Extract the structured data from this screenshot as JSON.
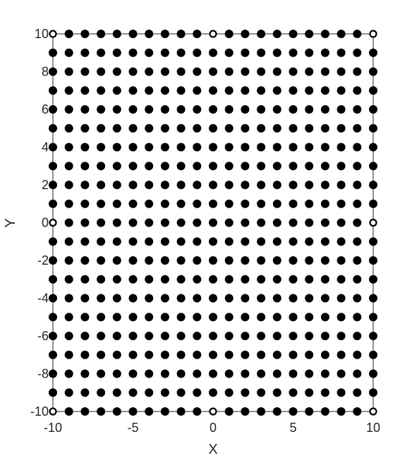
{
  "chart_data": {
    "type": "scatter",
    "title": "",
    "xlabel": "X",
    "ylabel": "Y",
    "xlim": [
      -10,
      10
    ],
    "ylim": [
      -10,
      10
    ],
    "xticks": [
      -10,
      -5,
      0,
      5,
      10
    ],
    "yticks": [
      -10,
      -8,
      -6,
      -4,
      -2,
      0,
      2,
      4,
      6,
      8,
      10
    ],
    "xtick_labels": [
      "-10",
      "-5",
      "0",
      "5",
      "10"
    ],
    "ytick_labels": [
      "-10",
      "-8",
      "-6",
      "-4",
      "-2",
      "0",
      "2",
      "4",
      "6",
      "8",
      "10"
    ],
    "grid": false,
    "series": [
      {
        "marker": "filled-circle",
        "color": "#000000",
        "description": "all integer lattice points (x, y) with x and y from -10 to 10, excluding the open points",
        "x_values": [
          -10,
          -9,
          -8,
          -7,
          -6,
          -5,
          -4,
          -3,
          -2,
          -1,
          0,
          1,
          2,
          3,
          4,
          5,
          6,
          7,
          8,
          9,
          10
        ],
        "y_values": [
          -10,
          -9,
          -8,
          -7,
          -6,
          -5,
          -4,
          -3,
          -2,
          -1,
          0,
          1,
          2,
          3,
          4,
          5,
          6,
          7,
          8,
          9,
          10
        ]
      },
      {
        "marker": "open-circle",
        "color": "#000000",
        "points": [
          [
            -10,
            10
          ],
          [
            0,
            10
          ],
          [
            10,
            10
          ],
          [
            -10,
            0
          ],
          [
            10,
            0
          ],
          [
            -10,
            -10
          ],
          [
            0,
            -10
          ],
          [
            10,
            -10
          ]
        ]
      }
    ]
  }
}
